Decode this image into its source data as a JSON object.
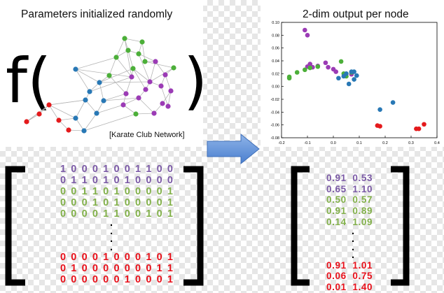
{
  "colors": {
    "purple": "#9b3bb5",
    "green": "#4caf39",
    "blue": "#2878b5",
    "red": "#e41a1c",
    "text_purple": "#7b5aa6",
    "text_green": "#82b04a",
    "text_red": "#e8111b",
    "arrow": "#5b8ed6"
  },
  "graph": {
    "title": "Parameters initialized randomly",
    "function_open": "f(",
    "function_close": ")",
    "caption": "[Karate Club Network]"
  },
  "arrow": {
    "icon": "right-arrow-icon"
  },
  "plot": {
    "title": "2-dim output per node",
    "chart_data": {
      "type": "scatter",
      "title": "2-dim output per node",
      "xlabel": "",
      "ylabel": "",
      "xlim": [
        -0.2,
        0.4
      ],
      "ylim": [
        -0.08,
        0.1
      ],
      "xticks": [
        "-0.2",
        "-0.1",
        "0.0",
        "0.1",
        "0.2",
        "0.3",
        "0.4"
      ],
      "yticks": [
        "0.10",
        "0.08",
        "0.06",
        "0.04",
        "0.02",
        "0.00",
        "-0.02",
        "-0.04",
        "-0.06",
        "-0.08"
      ],
      "grid": false,
      "series": [
        {
          "color": "purple",
          "points": [
            [
              -0.11,
              0.088
            ],
            [
              -0.1,
              0.08
            ],
            [
              -0.1,
              0.031
            ],
            [
              -0.09,
              0.035
            ],
            [
              -0.08,
              0.03
            ],
            [
              -0.06,
              0.032
            ],
            [
              -0.03,
              0.037
            ],
            [
              -0.02,
              0.03
            ],
            [
              0.0,
              0.027
            ],
            [
              0.01,
              0.023
            ],
            [
              0.07,
              0.019
            ]
          ]
        },
        {
          "color": "green",
          "points": [
            [
              -0.17,
              0.015
            ],
            [
              -0.17,
              0.013
            ],
            [
              -0.14,
              0.022
            ],
            [
              -0.11,
              0.026
            ],
            [
              -0.09,
              0.029
            ],
            [
              -0.06,
              0.031
            ],
            [
              0.03,
              0.039
            ],
            [
              0.04,
              0.02
            ],
            [
              0.05,
              0.016
            ],
            [
              0.07,
              0.022
            ]
          ]
        },
        {
          "color": "blue",
          "points": [
            [
              0.02,
              0.013
            ],
            [
              0.04,
              0.016
            ],
            [
              0.05,
              0.02
            ],
            [
              0.06,
              0.004
            ],
            [
              0.07,
              0.023
            ],
            [
              0.08,
              0.023
            ],
            [
              0.08,
              0.011
            ],
            [
              0.09,
              0.017
            ],
            [
              0.18,
              -0.036
            ],
            [
              0.23,
              -0.025
            ]
          ]
        },
        {
          "color": "red",
          "points": [
            [
              0.17,
              -0.061
            ],
            [
              0.18,
              -0.062
            ],
            [
              0.32,
              -0.066
            ],
            [
              0.33,
              -0.066
            ],
            [
              0.35,
              -0.059
            ]
          ]
        }
      ]
    }
  },
  "binary_matrix": {
    "rows": [
      {
        "text": "1 0 0 0 1 0 0 1 1 0 0",
        "color": "purple"
      },
      {
        "text": "0 1 1 0 1 0 1 0 0 0 0",
        "color": "purple"
      },
      {
        "text": "0 0 1 1 0 1 0 0 0 0 1",
        "color": "green"
      },
      {
        "text": "0 0 0 1 0 1 0 0 0 0 1",
        "color": "green"
      },
      {
        "text": "0 0 0 0 1 1 0 0 1 0 1",
        "color": "green"
      },
      {
        "text": "0 0 0 0 1 0 0 0 1 0 1",
        "color": "red"
      },
      {
        "text": "0 1 0 0 0 0 0 0 0 1 1",
        "color": "red"
      },
      {
        "text": "0 0 0 0 0 0 1 0 0 0 1",
        "color": "red"
      }
    ],
    "ellipsis": "."
  },
  "embedding_matrix": {
    "rows": [
      {
        "text": "0.91  0.53",
        "color": "purple"
      },
      {
        "text": "0.65  1.10",
        "color": "purple"
      },
      {
        "text": "0.50  0.57",
        "color": "green"
      },
      {
        "text": "0.91  0.89",
        "color": "green"
      },
      {
        "text": "0.14  1.09",
        "color": "green"
      },
      {
        "text": "0.91  1.01",
        "color": "red"
      },
      {
        "text": "0.06  0.75",
        "color": "red"
      },
      {
        "text": "0.01  1.40",
        "color": "red"
      }
    ],
    "ellipsis": "."
  }
}
